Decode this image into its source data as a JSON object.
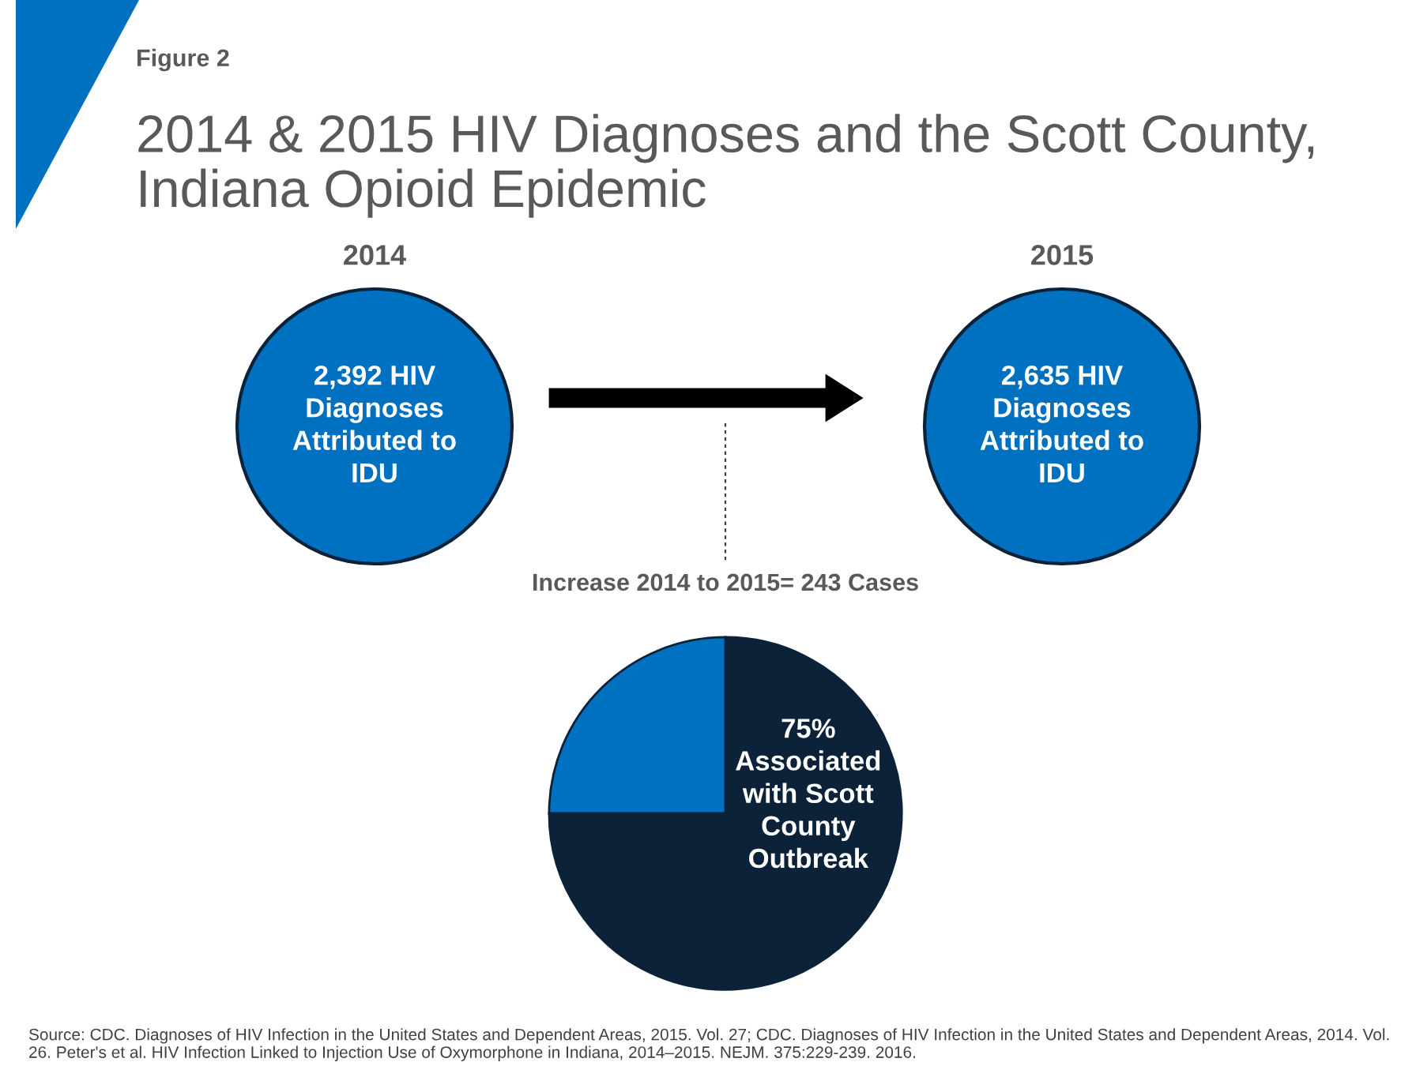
{
  "chart_data": {
    "type": "pie",
    "title": "2014 & 2015 HIV Diagnoses and the Scott County, Indiana Opioid Epidemic",
    "categories": [
      "Associated\nwith Scott\nCounty\nOutbreak",
      null
    ],
    "values": [
      75,
      25
    ],
    "value_labels": [
      "75%",
      null
    ],
    "colors": [
      "#0b2239",
      "#0070c0"
    ],
    "legend": false,
    "annotations": [
      "Figure 2",
      "2014",
      "2015",
      "2,392 HIV\nDiagnoses\nAttributed to\nIDU",
      "2,635 HIV\nDiagnoses\nAttributed to\nIDU",
      "Increase 2014 to 2015= 243 Cases",
      "Source: CDC. Diagnoses of HIV Infection in the United States and Dependent Areas, 2015. Vol. 27; CDC. Diagnoses of HIV Infection in the United States and Dependent Areas, 2014. Vol. 26. Peter's et al. HIV Infection Linked to Injection Use of Oxymorphone in Indiana, 2014–2015. NEJM. 375:229-239. 2016."
    ]
  }
}
